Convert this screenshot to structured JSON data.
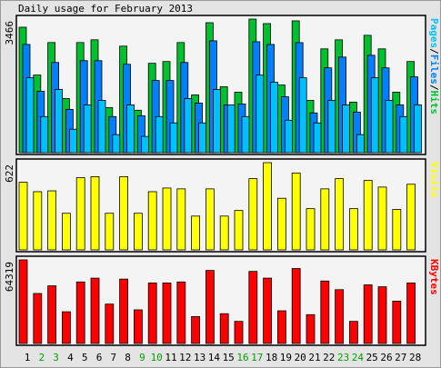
{
  "title": "Daily usage for February 2013",
  "legend_separator": "/",
  "chart_data": [
    {
      "type": "bar",
      "ylim": [
        0,
        3466
      ],
      "series": [
        {
          "name": "Hits",
          "color": "#00c030",
          "values": [
            3255,
            2014,
            2857,
            1405,
            2857,
            2928,
            1171,
            2764,
            1101,
            2319,
            2365,
            2857,
            1499,
            3372,
            1710,
            1569,
            3466,
            3349,
            1757,
            3420,
            1358,
            2693,
            2928,
            1312,
            3045,
            2693,
            1569,
            2365
          ]
        },
        {
          "name": "Files",
          "color": "#0080ff",
          "values": [
            2808,
            1591,
            2340,
            1123,
            2387,
            2387,
            936,
            2293,
            959,
            1872,
            1872,
            2340,
            1287,
            2902,
            1240,
            1264,
            2878,
            2808,
            1451,
            2855,
            1030,
            2200,
            2480,
            1053,
            2527,
            2200,
            1240,
            1966
          ]
        },
        {
          "name": "Pages",
          "color": "#00c0ff",
          "values": [
            1942,
            936,
            1638,
            608,
            1240,
            1357,
            468,
            1240,
            421,
            936,
            772,
            1404,
            772,
            1638,
            1240,
            936,
            2012,
            1825,
            842,
            1942,
            772,
            1357,
            1240,
            468,
            1942,
            1357,
            936,
            1240
          ]
        }
      ]
    },
    {
      "type": "bar",
      "ylim": [
        0,
        622
      ],
      "series": [
        {
          "name": "Visits",
          "color": "#ffff00",
          "values": [
            482,
            415,
            421,
            261,
            515,
            522,
            261,
            522,
            261,
            415,
            441,
            435,
            241,
            435,
            241,
            281,
            508,
            622,
            368,
            548,
            294,
            435,
            508,
            294,
            495,
            448,
            288,
            468
          ]
        }
      ]
    },
    {
      "type": "bar",
      "ylim": [
        0,
        64319
      ],
      "categories": [
        "1",
        "2",
        "3",
        "4",
        "5",
        "6",
        "7",
        "8",
        "9",
        "10",
        "11",
        "12",
        "13",
        "14",
        "15",
        "16",
        "17",
        "18",
        "19",
        "20",
        "21",
        "22",
        "23",
        "24",
        "25",
        "26",
        "27",
        "28"
      ],
      "weekend_categories": [
        "2",
        "3",
        "9",
        "10",
        "16",
        "17",
        "23",
        "24"
      ],
      "weekend_color": "#00a000",
      "series": [
        {
          "name": "KBytes",
          "color": "#ff0000",
          "values": [
            64319,
            38444,
            44358,
            24397,
            47315,
            50272,
            30311,
            49533,
            25876,
            46576,
            46576,
            47315,
            20700,
            56187,
            22918,
            17004,
            55448,
            50272,
            25136,
            57665,
            22179,
            48055,
            41401,
            17004,
            45097,
            43619,
            32529,
            46576
          ]
        }
      ]
    }
  ]
}
